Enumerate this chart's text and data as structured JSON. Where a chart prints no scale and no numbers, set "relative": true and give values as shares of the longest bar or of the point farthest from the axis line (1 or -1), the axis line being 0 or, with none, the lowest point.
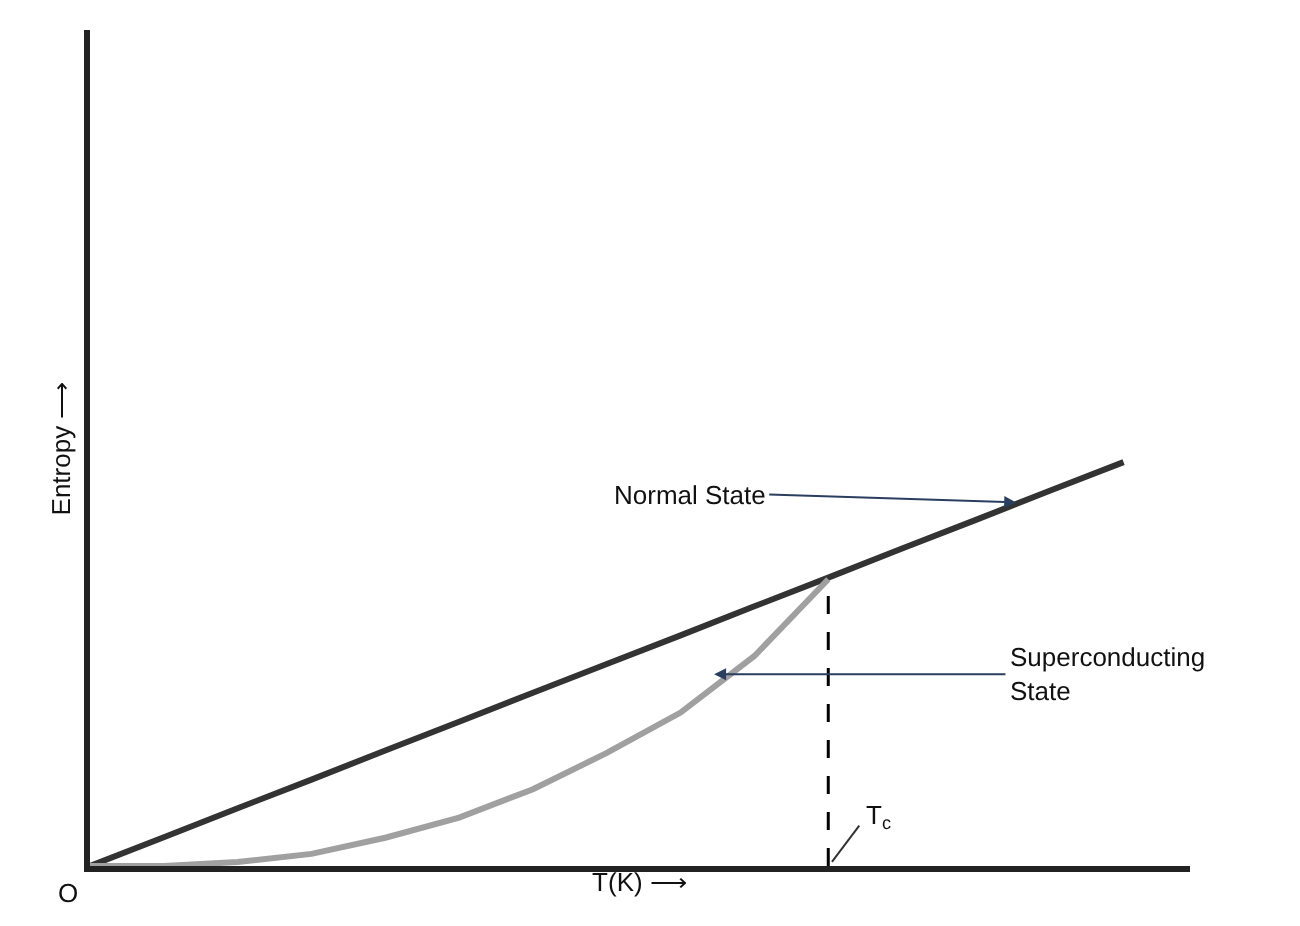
{
  "chart_data": {
    "type": "line",
    "relative": true,
    "categories": [
      null,
      null,
      null,
      null,
      null,
      null,
      null,
      null,
      null,
      null,
      null,
      null,
      null,
      null,
      null
    ],
    "series": [
      {
        "color": "#333333",
        "values": [
          0,
          0.071,
          0.143,
          0.214,
          0.286,
          0.357,
          0.429,
          0.5,
          0.571,
          0.643,
          0.714,
          0.786,
          0.857,
          0.929,
          1
        ]
      },
      {
        "color": "#a0a0a0",
        "values": [
          0,
          0,
          0.01,
          0.03,
          0.07,
          0.12,
          0.19,
          0.28,
          0.38,
          0.52,
          0.71,
          null,
          null,
          null,
          null
        ]
      }
    ],
    "xlabel": "T(K) ⟶",
    "ylabel": "Entropy ⟶",
    "annotations": [
      "Normal State",
      "Superconducting State",
      "O",
      "T$_{c}$"
    ],
    "marker": "none",
    "line_style": "solid",
    "tick_labels": false
  }
}
